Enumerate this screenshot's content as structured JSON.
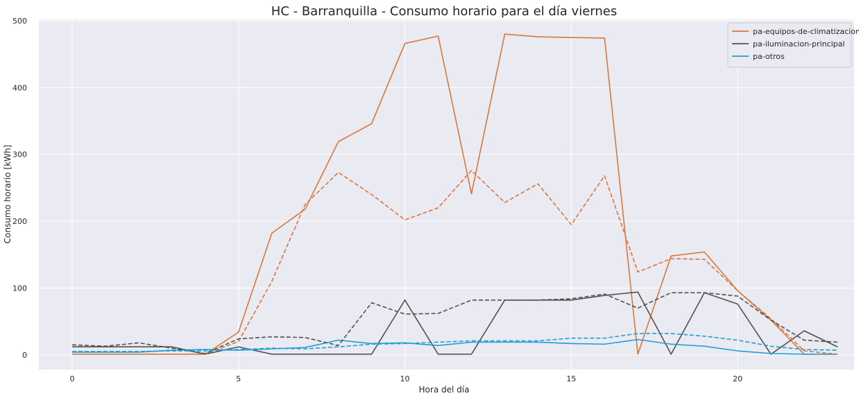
{
  "chart_data": {
    "type": "line",
    "title": "HC - Barranquilla - Consumo horario para el día viernes",
    "xlabel": "Hora del día",
    "ylabel": "Consumo horario [kWh]",
    "xlim": [
      -1,
      23.5
    ],
    "ylim": [
      -22,
      502
    ],
    "xticks": [
      0,
      5,
      10,
      15,
      20
    ],
    "yticks": [
      0,
      100,
      200,
      300,
      400,
      500
    ],
    "grid": true,
    "background": "#eaeaf2",
    "legend_position": "top-right",
    "x": [
      0,
      1,
      2,
      3,
      4,
      5,
      6,
      7,
      8,
      9,
      10,
      11,
      12,
      13,
      14,
      15,
      16,
      17,
      18,
      19,
      20,
      21,
      22,
      23
    ],
    "series": [
      {
        "name": "pa-equipos-de-climatizacion",
        "style": "solid",
        "color": "#d9773a",
        "values": [
          1,
          1,
          1,
          1,
          1,
          34,
          182,
          218,
          319,
          346,
          466,
          477,
          241,
          480,
          476,
          475,
          474,
          1,
          148,
          154,
          96,
          52,
          1,
          1
        ]
      },
      {
        "name": "pa-iluminacion-principal",
        "style": "solid",
        "color": "#505050",
        "values": [
          12,
          12,
          12,
          12,
          1,
          12,
          1,
          1,
          1,
          1,
          82,
          1,
          1,
          82,
          82,
          82,
          89,
          94,
          1,
          93,
          76,
          1,
          36,
          12
        ]
      },
      {
        "name": "pa-otros",
        "style": "solid",
        "color": "#1d9ed9",
        "values": [
          4,
          4,
          4,
          7,
          8,
          7,
          9,
          11,
          22,
          17,
          18,
          14,
          19,
          19,
          19,
          17,
          16,
          23,
          16,
          13,
          6,
          2,
          1,
          1
        ]
      },
      {
        "name": "",
        "style": "dashed",
        "color": "#d9773a",
        "values": [
          1,
          1,
          1,
          1,
          1,
          20,
          110,
          225,
          273,
          240,
          202,
          220,
          276,
          228,
          256,
          195,
          268,
          124,
          144,
          143,
          96,
          54,
          6,
          1
        ]
      },
      {
        "name": "",
        "style": "dashed",
        "color": "#505050",
        "values": [
          15,
          13,
          18,
          10,
          2,
          24,
          27,
          26,
          14,
          78,
          61,
          62,
          82,
          82,
          82,
          84,
          91,
          70,
          93,
          93,
          88,
          52,
          22,
          19
        ]
      },
      {
        "name": "",
        "style": "dashed",
        "color": "#1d9ed9",
        "values": [
          5,
          5,
          5,
          6,
          6,
          8,
          10,
          9,
          12,
          16,
          17,
          19,
          21,
          21,
          21,
          25,
          25,
          32,
          32,
          28,
          22,
          13,
          8,
          7
        ]
      }
    ]
  }
}
